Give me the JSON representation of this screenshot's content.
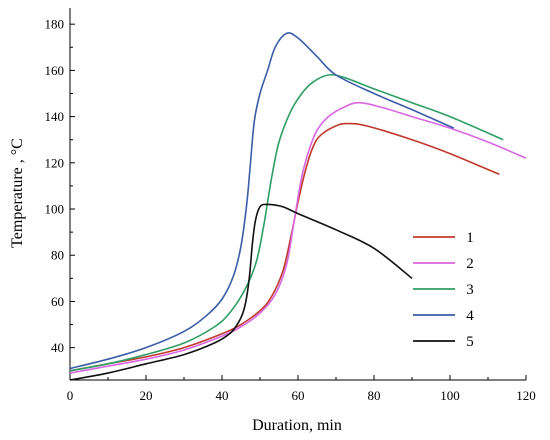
{
  "chart_data": {
    "type": "line",
    "title": "",
    "xlabel": "Duration, min",
    "ylabel": "Temperature , °C",
    "xlim": [
      0,
      120
    ],
    "ylim": [
      26,
      187
    ],
    "xticks": [
      0,
      20,
      40,
      60,
      80,
      100,
      120
    ],
    "yticks": [
      40,
      60,
      80,
      100,
      120,
      140,
      160,
      180
    ],
    "grid": false,
    "legend": "right",
    "series": [
      {
        "name": "1",
        "color": "#c0392b",
        "points": [
          [
            0,
            30
          ],
          [
            10,
            33
          ],
          [
            20,
            36
          ],
          [
            30,
            40
          ],
          [
            40,
            46
          ],
          [
            45,
            50
          ],
          [
            50,
            56
          ],
          [
            53,
            62
          ],
          [
            56,
            73
          ],
          [
            58,
            87
          ],
          [
            60,
            103
          ],
          [
            62,
            117
          ],
          [
            64,
            127
          ],
          [
            66,
            132
          ],
          [
            70,
            136
          ],
          [
            73,
            137
          ],
          [
            78,
            136
          ],
          [
            90,
            130
          ],
          [
            100,
            124
          ],
          [
            113,
            115
          ]
        ]
      },
      {
        "name": "2",
        "color": "#d966e3",
        "points": [
          [
            0,
            29
          ],
          [
            10,
            32
          ],
          [
            20,
            35
          ],
          [
            30,
            39
          ],
          [
            40,
            45
          ],
          [
            45,
            49
          ],
          [
            50,
            55
          ],
          [
            54,
            63
          ],
          [
            57,
            76
          ],
          [
            59,
            95
          ],
          [
            61,
            114
          ],
          [
            63,
            126
          ],
          [
            65,
            134
          ],
          [
            68,
            140
          ],
          [
            72,
            144
          ],
          [
            76,
            146
          ],
          [
            82,
            144
          ],
          [
            90,
            140
          ],
          [
            100,
            135
          ],
          [
            110,
            129
          ],
          [
            120,
            122
          ]
        ]
      },
      {
        "name": "3",
        "color": "#2e9e63",
        "points": [
          [
            0,
            30
          ],
          [
            10,
            33
          ],
          [
            20,
            37
          ],
          [
            30,
            42
          ],
          [
            38,
            49
          ],
          [
            42,
            55
          ],
          [
            46,
            65
          ],
          [
            49,
            77
          ],
          [
            51,
            93
          ],
          [
            53,
            113
          ],
          [
            55,
            129
          ],
          [
            58,
            142
          ],
          [
            61,
            150
          ],
          [
            64,
            155
          ],
          [
            68,
            158
          ],
          [
            72,
            157
          ],
          [
            80,
            152
          ],
          [
            90,
            146
          ],
          [
            100,
            140
          ],
          [
            114,
            130
          ]
        ]
      },
      {
        "name": "4",
        "color": "#3a5da8",
        "points": [
          [
            0,
            31
          ],
          [
            10,
            35
          ],
          [
            20,
            40
          ],
          [
            30,
            47
          ],
          [
            36,
            54
          ],
          [
            40,
            61
          ],
          [
            43,
            71
          ],
          [
            45,
            84
          ],
          [
            46.5,
            102
          ],
          [
            47.5,
            120
          ],
          [
            48.5,
            138
          ],
          [
            50,
            150
          ],
          [
            52,
            160
          ],
          [
            54,
            170
          ],
          [
            57,
            176
          ],
          [
            60,
            174
          ],
          [
            65,
            166
          ],
          [
            70,
            158
          ],
          [
            80,
            150
          ],
          [
            90,
            143
          ],
          [
            101,
            135
          ]
        ]
      },
      {
        "name": "5",
        "color": "#111111",
        "points": [
          [
            0,
            26
          ],
          [
            10,
            29
          ],
          [
            20,
            33
          ],
          [
            30,
            37
          ],
          [
            38,
            42
          ],
          [
            42,
            46
          ],
          [
            44,
            50
          ],
          [
            45.5,
            55
          ],
          [
            46.5,
            62
          ],
          [
            47.3,
            72
          ],
          [
            48,
            85
          ],
          [
            48.8,
            95
          ],
          [
            50,
            101
          ],
          [
            52,
            102
          ],
          [
            56,
            101
          ],
          [
            60,
            98
          ],
          [
            70,
            91
          ],
          [
            80,
            83
          ],
          [
            90,
            70
          ]
        ]
      }
    ]
  }
}
